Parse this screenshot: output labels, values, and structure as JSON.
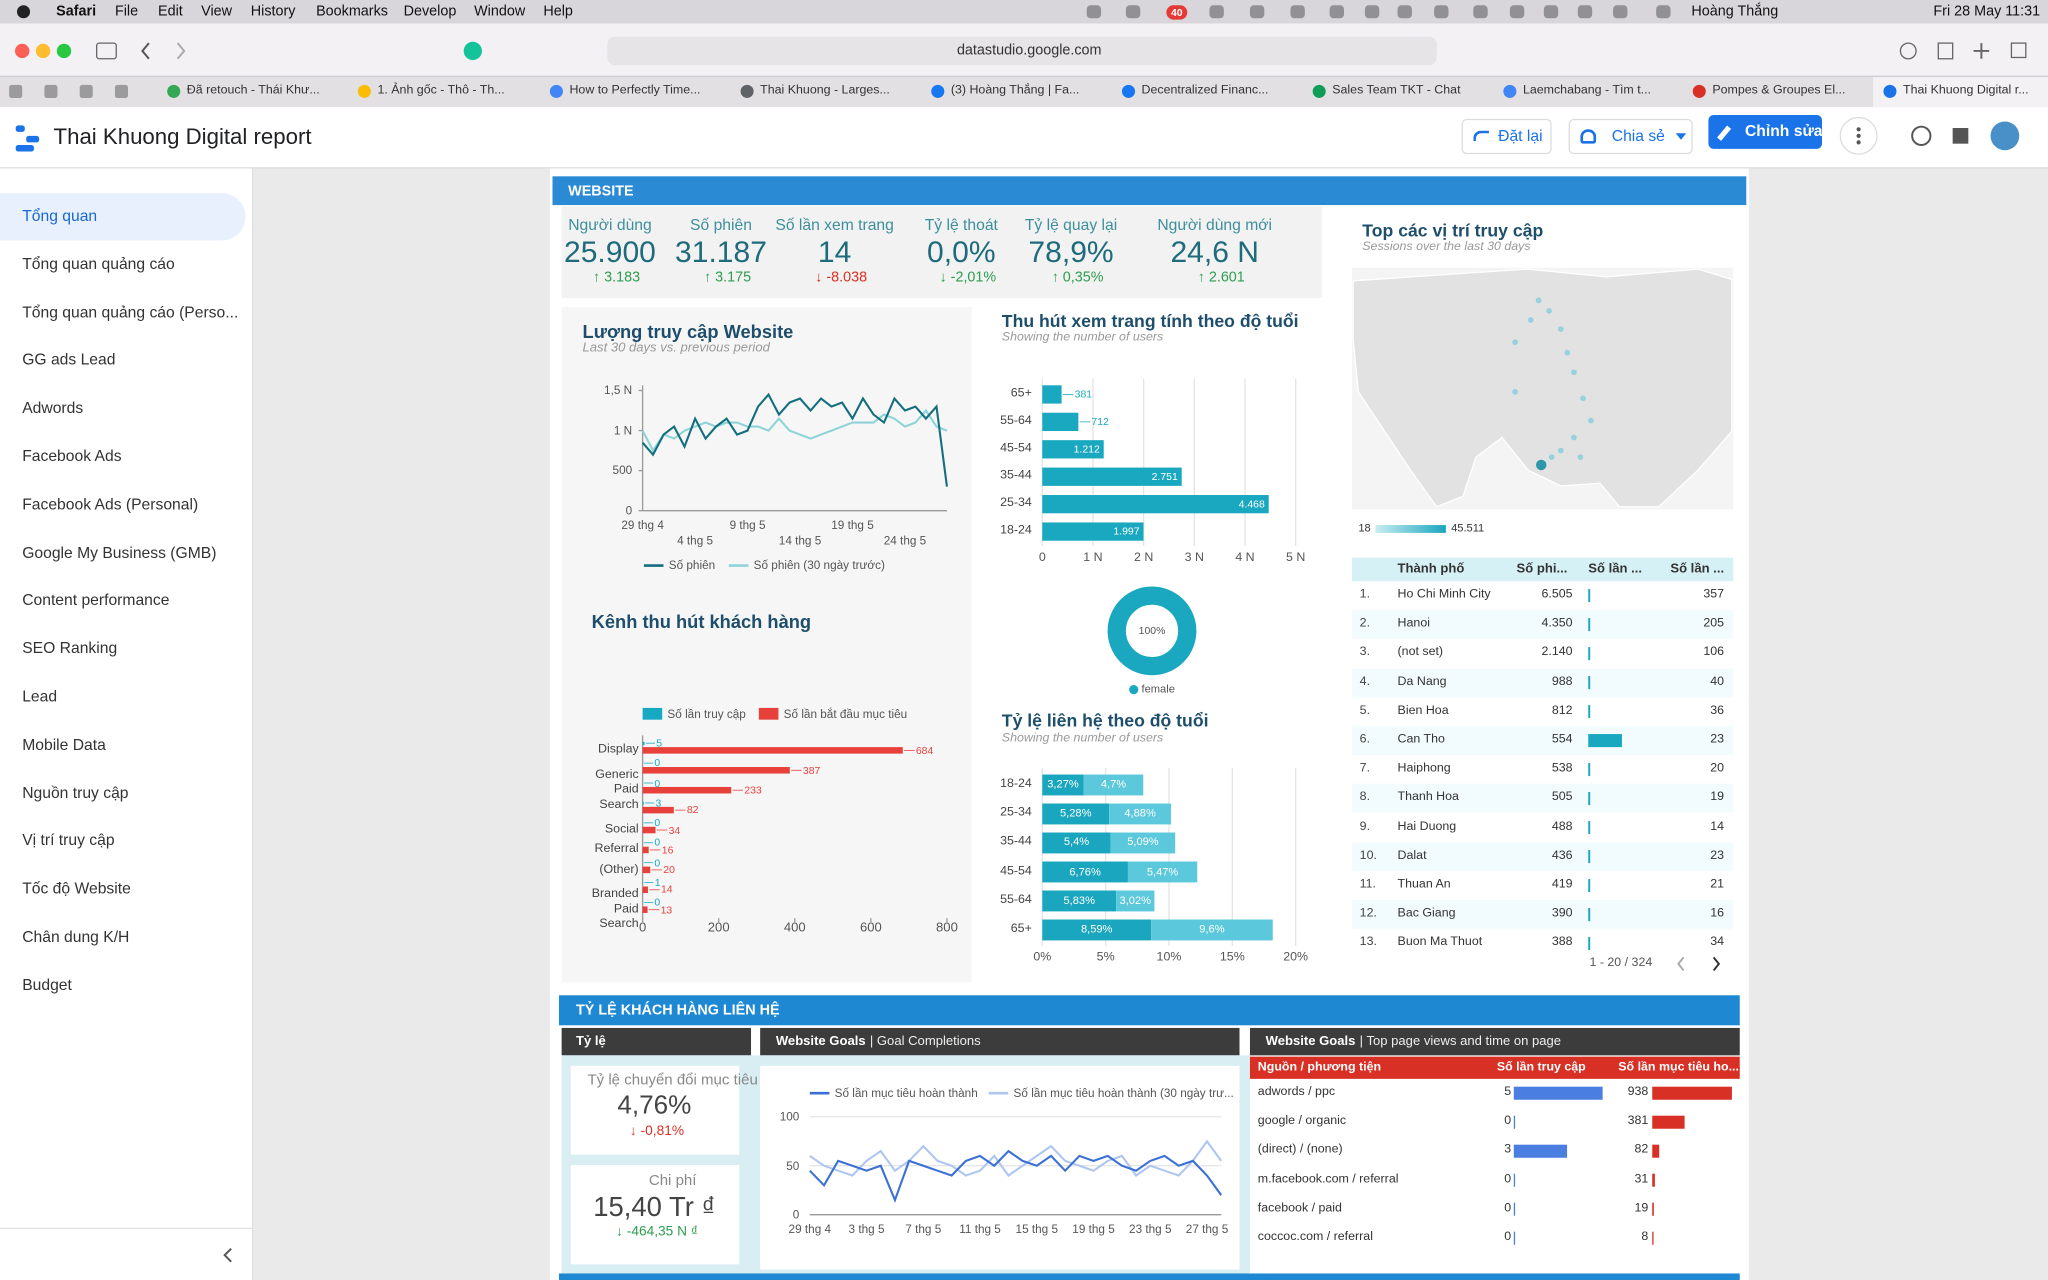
{
  "menubar": {
    "app": "Safari",
    "menus": [
      "File",
      "Edit",
      "View",
      "History",
      "Bookmarks",
      "Develop",
      "Window",
      "Help"
    ],
    "badge": "40",
    "user": "Hoàng Thắng",
    "datetime": "Fri 28 May  11:31"
  },
  "browser": {
    "url": "datastudio.google.com",
    "tabs": [
      "Đã retouch - Thái Khư...",
      "1. Ảnh gốc - Thô - Th...",
      "How to Perfectly Time...",
      "Thai Khuong - Larges...",
      "(3) Hoàng Thắng | Fa...",
      "Decentralized Financ...",
      "Sales Team TKT - Chat",
      "Laemchabang - Tìm t...",
      "Pompes & Groupes El...",
      "Thai Khuong Digital r..."
    ]
  },
  "app": {
    "title": "Thai Khuong Digital report",
    "reset": "Đặt lại",
    "share": "Chia sẻ",
    "edit": "Chỉnh sửa"
  },
  "sidebar": {
    "items": [
      "Tổng quan",
      "Tổng quan quảng cáo",
      "Tổng quan quảng cáo (Perso...",
      "GG ads Lead",
      "Adwords",
      "Facebook Ads",
      "Facebook Ads (Personal)",
      "Google My Business (GMB)",
      "Content performance",
      "SEO Ranking",
      "Lead",
      "Mobile Data",
      "Nguồn truy cập",
      "Vị trí truy cập",
      "Tốc độ Website",
      "Chân dung K/H",
      "Budget"
    ],
    "active": 0
  },
  "website": {
    "header": "WEBSITE",
    "scorecards": [
      {
        "label": "Người dùng",
        "value": "25.900",
        "delta": "3.183",
        "dir": "up",
        "color": "#2e9e4f"
      },
      {
        "label": "Số phiên",
        "value": "31.187",
        "delta": "3.175",
        "dir": "up",
        "color": "#2e9e4f"
      },
      {
        "label": "Số lần xem trang",
        "value": "14",
        "delta": "-8.038",
        "dir": "down",
        "color": "#d93025"
      },
      {
        "label": "Tỷ lệ thoát",
        "value": "0,0%",
        "delta": "-2,01%",
        "dir": "down",
        "color": "#2e9e4f"
      },
      {
        "label": "Tỷ lệ quay lại",
        "value": "78,9%",
        "delta": "0,35%",
        "dir": "up",
        "color": "#2e9e4f"
      },
      {
        "label": "Người dùng mới",
        "value": "24,6 N",
        "delta": "2.601",
        "dir": "up",
        "color": "#2e9e4f"
      }
    ]
  },
  "map": {
    "title": "Top các vị trí truy cập",
    "subtitle": "Sessions over the last 30 days",
    "legend_min": "18",
    "legend_max": "45.511"
  },
  "city_table": {
    "headers": [
      "Thành phố",
      "Số phi...",
      "Số lần ...",
      "Số lần ..."
    ],
    "rows": [
      [
        "1.",
        "Ho Chi Minh City",
        "6.505",
        "357"
      ],
      [
        "2.",
        "Hanoi",
        "4.350",
        "205"
      ],
      [
        "3.",
        "(not set)",
        "2.140",
        "106"
      ],
      [
        "4.",
        "Da Nang",
        "988",
        "40"
      ],
      [
        "5.",
        "Bien Hoa",
        "812",
        "36"
      ],
      [
        "6.",
        "Can Tho",
        "554",
        "23"
      ],
      [
        "7.",
        "Haiphong",
        "538",
        "20"
      ],
      [
        "8.",
        "Thanh Hoa",
        "505",
        "19"
      ],
      [
        "9.",
        "Hai Duong",
        "488",
        "14"
      ],
      [
        "10.",
        "Dalat",
        "436",
        "23"
      ],
      [
        "11.",
        "Thuan An",
        "419",
        "21"
      ],
      [
        "12.",
        "Bac Giang",
        "390",
        "16"
      ],
      [
        "13.",
        "Buon Ma Thuot",
        "388",
        "34"
      ]
    ],
    "bars": [
      1,
      1,
      1,
      1,
      1,
      43,
      1,
      1,
      1,
      1,
      1,
      1,
      1
    ],
    "bar_lim": [
      0,
      100
    ],
    "pagination": "1 - 20 / 324"
  },
  "contact": {
    "header": "TỶ LỆ KHÁCH HÀNG LIÊN HỆ",
    "rate_panel": "Tỷ lệ",
    "goals_panel": {
      "bold": "Website Goals",
      "rest": "| Goal Completions"
    },
    "top_panel": {
      "bold": "Website Goals",
      "rest": "| Top page views and time on page"
    },
    "scorecards": [
      {
        "label": "Tỷ lệ chuyển đổi mục tiêu",
        "value": "4,76%",
        "delta": "-0,81%",
        "dir": "down",
        "color": "#d93025"
      },
      {
        "label": "Chi phí",
        "value": "15,40 Tr ₫",
        "delta": "-464,35 N ₫",
        "dir": "down",
        "color": "#2e9e4f"
      }
    ]
  },
  "source_table": {
    "headers": [
      "Nguồn / phương tiện",
      "Số lần truy cập",
      "Số lần mục tiêu ho..."
    ],
    "rows": [
      {
        "source": "adwords / ppc",
        "visits": 5,
        "goals": 938
      },
      {
        "source": "google / organic",
        "visits": 0,
        "goals": 381
      },
      {
        "source": "(direct) / (none)",
        "visits": 3,
        "goals": 82
      },
      {
        "source": "m.facebook.com / referral",
        "visits": 0,
        "goals": 31
      },
      {
        "source": "facebook / paid",
        "visits": 0,
        "goals": 19
      },
      {
        "source": "coccoc.com / referral",
        "visits": 0,
        "goals": 8
      }
    ]
  },
  "chart_data": [
    {
      "type": "line",
      "title": "Lượng truy cập Website",
      "subtitle": "Last 30 days vs. previous period",
      "categories": [
        "29 thg 4",
        null,
        null,
        null,
        null,
        "4 thg 5",
        null,
        null,
        null,
        null,
        "9 thg 5",
        null,
        null,
        null,
        null,
        "14 thg 5",
        null,
        null,
        null,
        null,
        "19 thg 5",
        null,
        null,
        null,
        null,
        "24 thg 5",
        null,
        null,
        null,
        null
      ],
      "series": [
        {
          "name": "Số phiên",
          "color": "#136e7d",
          "values": [
            850,
            700,
            950,
            1050,
            800,
            1150,
            900,
            1050,
            1150,
            950,
            1000,
            1300,
            1450,
            1200,
            1350,
            1400,
            1250,
            1400,
            1300,
            1350,
            1150,
            1400,
            1200,
            1100,
            1400,
            1250,
            1300,
            1150,
            1300,
            300
          ]
        },
        {
          "name": "Số phiên (30 ngày trước)",
          "color": "#8ed3d8",
          "values": [
            1000,
            750,
            950,
            900,
            1000,
            1050,
            1100,
            1050,
            1100,
            1100,
            1050,
            1050,
            1000,
            1150,
            1000,
            950,
            900,
            950,
            1000,
            1050,
            1100,
            1100,
            1100,
            1200,
            1150,
            1050,
            1100,
            1250,
            1050,
            1000
          ]
        }
      ],
      "ylim": [
        0,
        1500
      ],
      "yticks": [
        0,
        500,
        {
          "value": 1000,
          "label": "1 N"
        },
        {
          "value": 1500,
          "label": "1,5 N"
        }
      ]
    },
    {
      "type": "hbar",
      "title": "Kênh thu hút khách hàng",
      "categories": [
        "Display",
        null,
        "Generic Paid Search",
        null,
        "Social",
        "Referral",
        "(Other)",
        null,
        "Branded Paid Search"
      ],
      "series": [
        {
          "name": "Số lần truy cập",
          "color": "#17a9c3",
          "values": [
            5,
            0,
            0,
            3,
            0,
            0,
            0,
            1,
            0
          ]
        },
        {
          "name": "Số lần bắt đầu mục tiêu",
          "color": "#e8413c",
          "values": [
            684,
            387,
            233,
            82,
            34,
            16,
            20,
            14,
            13
          ]
        }
      ],
      "xlim": [
        0,
        800
      ],
      "xticks": [
        0,
        200,
        400,
        600,
        800
      ]
    },
    {
      "type": "hbar",
      "title": "Thu hút xem trang tính theo độ tuổi",
      "subtitle": "Showing the number of users",
      "categories": [
        "65+",
        "55-64",
        "45-54",
        "35-44",
        "25-34",
        "18-24"
      ],
      "values": [
        381,
        712,
        1212,
        2751,
        4468,
        1997
      ],
      "value_labels": [
        "381",
        "712",
        "1.212",
        "2.751",
        "4.468",
        "1.997"
      ],
      "color": "#19a8c0",
      "xlim": [
        0,
        5000
      ],
      "xticks": [
        0,
        {
          "value": 1000,
          "label": "1 N"
        },
        {
          "value": 2000,
          "label": "2 N"
        },
        {
          "value": 3000,
          "label": "3 N"
        },
        {
          "value": 4000,
          "label": "4 N"
        },
        {
          "value": 5000,
          "label": "5 N"
        }
      ],
      "grid": true
    },
    {
      "type": "pie",
      "categories": [
        "female"
      ],
      "values": [
        100
      ],
      "value_labels": [
        "100%"
      ],
      "color": "#19a8c0"
    },
    {
      "type": "stacked_hbar",
      "title": "Tỷ lệ liên hệ theo độ tuổi",
      "subtitle": "Showing the number of users",
      "categories": [
        "18-24",
        "25-34",
        "35-44",
        "45-54",
        "55-64",
        "65+"
      ],
      "series": [
        {
          "color": "#1aa6be",
          "values": [
            3.27,
            5.28,
            5.4,
            6.76,
            5.83,
            8.59
          ],
          "value_labels": [
            "3,27%",
            "5,28%",
            "5,4%",
            "6,76%",
            "5,83%",
            "8,59%"
          ]
        },
        {
          "color": "#5cc8dc",
          "values": [
            4.7,
            4.88,
            5.09,
            5.47,
            3.02,
            9.6
          ],
          "value_labels": [
            "4,7%",
            "4,88%",
            "5,09%",
            "5,47%",
            "3,02%",
            "9,6%"
          ]
        }
      ],
      "xlim": [
        0,
        20
      ],
      "xticks": [
        {
          "value": 0,
          "label": "0%"
        },
        {
          "value": 5,
          "label": "5%"
        },
        {
          "value": 10,
          "label": "10%"
        },
        {
          "value": 15,
          "label": "15%"
        },
        {
          "value": 20,
          "label": "20%"
        }
      ],
      "grid": true
    },
    {
      "type": "line",
      "categories": [
        "29 thg 4",
        null,
        null,
        null,
        "3 thg 5",
        null,
        null,
        null,
        "7 thg 5",
        null,
        null,
        null,
        "11 thg 5",
        null,
        null,
        null,
        "15 thg 5",
        null,
        null,
        null,
        "19 thg 5",
        null,
        null,
        null,
        "23 thg 5",
        null,
        null,
        null,
        "27 thg 5",
        null
      ],
      "series": [
        {
          "name": "Số lần mục tiêu hoàn thành",
          "color": "#3b6fd6",
          "values": [
            45,
            30,
            55,
            50,
            45,
            50,
            15,
            55,
            50,
            45,
            40,
            55,
            60,
            50,
            65,
            55,
            50,
            60,
            45,
            60,
            55,
            60,
            50,
            45,
            55,
            60,
            50,
            55,
            40,
            20
          ]
        },
        {
          "name": "Số lần mục tiêu hoàn thành (30 ngày trư...",
          "color": "#aec6f0",
          "values": [
            60,
            50,
            45,
            40,
            55,
            65,
            45,
            55,
            70,
            55,
            50,
            40,
            45,
            60,
            40,
            50,
            60,
            70,
            55,
            50,
            45,
            55,
            60,
            40,
            50,
            45,
            40,
            55,
            75,
            55
          ]
        }
      ],
      "ylim": [
        0,
        100
      ],
      "yticks": [
        0,
        50,
        100
      ],
      "grid": true
    }
  ]
}
